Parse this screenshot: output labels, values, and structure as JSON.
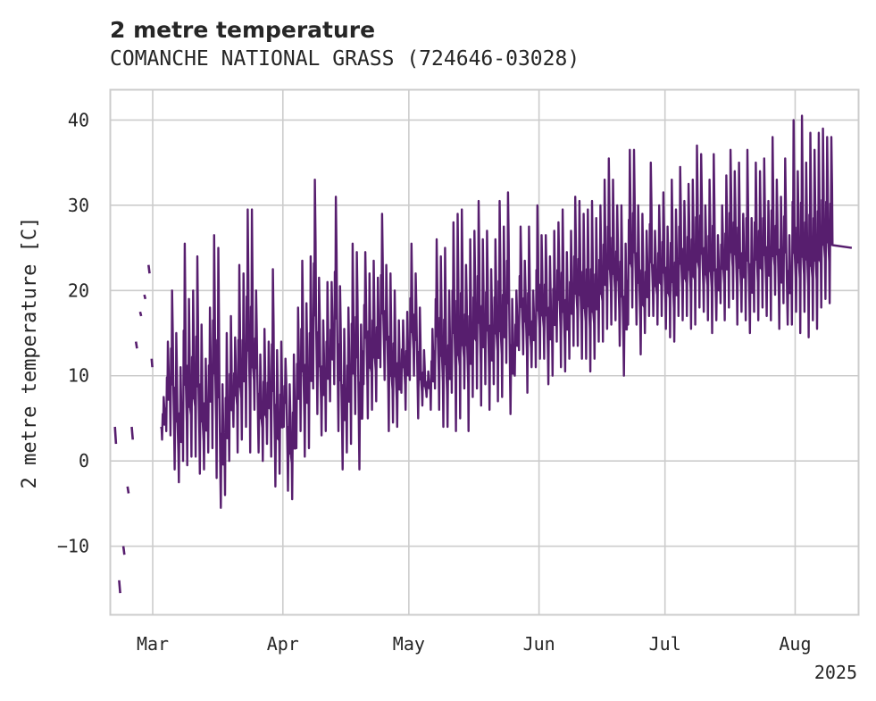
{
  "chart_data": {
    "type": "line",
    "title": "2 metre temperature",
    "subtitle": "COMANCHE NATIONAL GRASS (724646-03028)",
    "xlabel": "",
    "ylabel": "2 metre temperature [C]",
    "x_range": [
      "2025-02-19",
      "2025-08-16"
    ],
    "ylim": [
      -18,
      43.5
    ],
    "y_ticks": [
      40,
      30,
      20,
      10,
      0,
      -10
    ],
    "y_tick_labels": [
      "40",
      "30",
      "20",
      "10",
      "0",
      "−10"
    ],
    "x_ticks": [
      "2025-03-01",
      "2025-04-01",
      "2025-05-01",
      "2025-06-01",
      "2025-07-01",
      "2025-08-01"
    ],
    "x_tick_labels": [
      "Mar",
      "Apr",
      "May",
      "Jun",
      "Jul",
      "Aug"
    ],
    "x_secondary_label": "2025",
    "grid": true,
    "colors": {
      "line": "#571e6e",
      "grid": "#cccccc",
      "spine": "#cccccc",
      "text": "#262626"
    },
    "series": [
      {
        "name": "2 metre temperature",
        "segments": [
          [
            [
              "2025-02-20T00",
              4.0
            ],
            [
              "2025-02-20T06",
              2.0
            ]
          ],
          [
            [
              "2025-02-21T00",
              -14.0
            ],
            [
              "2025-02-21T06",
              -15.5
            ]
          ],
          [
            [
              "2025-02-22T00",
              -10.0
            ],
            [
              "2025-02-22T06",
              -11.0
            ]
          ],
          [
            [
              "2025-02-23T00",
              -3.0
            ],
            [
              "2025-02-23T06",
              -3.8
            ]
          ],
          [
            [
              "2025-02-24T00",
              4.0
            ],
            [
              "2025-02-24T06",
              2.5
            ]
          ],
          [
            [
              "2025-02-25T00",
              14.0
            ],
            [
              "2025-02-25T06",
              13.2
            ]
          ],
          [
            [
              "2025-02-26T00",
              17.5
            ],
            [
              "2025-02-26T06",
              17.0
            ]
          ],
          [
            [
              "2025-02-27T00",
              19.5
            ],
            [
              "2025-02-27T06",
              19.0
            ]
          ],
          [
            [
              "2025-02-28T00",
              23.0
            ],
            [
              "2025-02-28T06",
              22.0
            ]
          ],
          [
            [
              "2025-02-28T18",
              12.0
            ],
            [
              "2025-02-28T22",
              11.0
            ]
          ]
        ],
        "daily_ranges": [
          [
            3,
            2.5,
            7.5
          ],
          [
            4,
            3.5,
            14
          ],
          [
            5,
            3,
            20
          ],
          [
            6,
            -1,
            15
          ],
          [
            7,
            -2.5,
            11
          ],
          [
            8,
            0,
            25.5
          ],
          [
            9,
            -0.5,
            19
          ],
          [
            10,
            0.5,
            20
          ],
          [
            11,
            0.5,
            24
          ],
          [
            12,
            -1.5,
            16
          ],
          [
            13,
            -1,
            12
          ],
          [
            14,
            1,
            18
          ],
          [
            15,
            1.5,
            26.5
          ],
          [
            16,
            -2,
            25
          ],
          [
            17,
            -5.5,
            9
          ],
          [
            18,
            -4,
            15
          ],
          [
            19,
            0,
            17
          ],
          [
            20,
            4,
            14.5
          ],
          [
            21,
            1,
            23
          ],
          [
            22,
            2.5,
            22
          ],
          [
            23,
            4,
            29.5
          ],
          [
            24,
            1,
            29.5
          ],
          [
            25,
            6,
            20
          ],
          [
            26,
            1,
            12.5
          ],
          [
            27,
            0,
            15.5
          ],
          [
            28,
            2,
            14
          ],
          [
            29,
            0.5,
            22.5
          ],
          [
            30,
            -3,
            13
          ],
          [
            31,
            -1.5,
            14
          ],
          [
            32,
            4,
            12
          ],
          [
            33,
            -3.5,
            9
          ],
          [
            34,
            -4.5,
            12.5
          ],
          [
            35,
            1.5,
            18
          ],
          [
            36,
            3.5,
            23.5
          ],
          [
            37,
            0.5,
            18.5
          ],
          [
            38,
            1.5,
            24
          ],
          [
            39,
            8.5,
            33
          ],
          [
            40,
            5.5,
            21.5
          ],
          [
            41,
            3,
            16.5
          ],
          [
            42,
            3.5,
            21
          ],
          [
            43,
            7,
            21
          ],
          [
            44,
            9,
            31
          ],
          [
            45,
            3.5,
            20.5
          ],
          [
            46,
            -1,
            15.5
          ],
          [
            47,
            1,
            18
          ],
          [
            48,
            2,
            25.5
          ],
          [
            49,
            5.5,
            24.5
          ],
          [
            50,
            -1,
            16
          ],
          [
            51,
            9,
            24.5
          ],
          [
            52,
            5,
            22
          ],
          [
            53,
            6,
            23.5
          ],
          [
            54,
            7,
            21.5
          ],
          [
            55,
            11,
            29
          ],
          [
            56,
            9.5,
            23
          ],
          [
            57,
            3.5,
            22
          ],
          [
            58,
            4.5,
            20
          ],
          [
            59,
            4,
            16.5
          ],
          [
            60,
            8,
            16.5
          ],
          [
            61,
            6,
            17.5
          ],
          [
            62,
            9.5,
            25.5
          ],
          [
            63,
            10,
            22
          ],
          [
            64,
            5,
            18
          ],
          [
            65,
            6.5,
            13
          ],
          [
            66,
            7.5,
            10.5
          ],
          [
            67,
            6,
            15.5
          ],
          [
            68,
            8.5,
            26
          ],
          [
            69,
            6,
            24
          ],
          [
            70,
            4,
            25
          ],
          [
            71,
            4,
            20
          ],
          [
            72,
            8,
            28
          ],
          [
            73,
            3.5,
            29
          ],
          [
            74,
            5,
            29.5
          ],
          [
            75,
            8.5,
            23
          ],
          [
            76,
            3.5,
            26
          ],
          [
            77,
            7.5,
            27
          ],
          [
            78,
            8.5,
            30.5
          ],
          [
            79,
            6.5,
            26
          ],
          [
            80,
            9,
            27
          ],
          [
            81,
            6,
            22.5
          ],
          [
            82,
            9,
            26
          ],
          [
            83,
            7,
            30.5
          ],
          [
            84,
            7.5,
            27.5
          ],
          [
            85,
            11.5,
            31.5
          ],
          [
            86,
            5.5,
            19
          ],
          [
            87,
            10,
            20
          ],
          [
            88,
            13,
            27.5
          ],
          [
            89,
            12.5,
            23.5
          ],
          [
            90,
            8,
            27.5
          ],
          [
            91,
            11,
            20
          ],
          [
            92,
            11,
            30
          ],
          [
            93,
            12,
            26.5
          ],
          [
            94,
            12,
            26.5
          ],
          [
            95,
            9,
            24
          ],
          [
            96,
            10,
            27
          ],
          [
            97,
            14,
            28
          ],
          [
            98,
            11,
            29.5
          ],
          [
            99,
            10.5,
            24.5
          ],
          [
            100,
            12,
            27
          ],
          [
            101,
            13.5,
            31
          ],
          [
            102,
            13.5,
            30.5
          ],
          [
            103,
            12,
            29
          ],
          [
            104,
            12,
            29.5
          ],
          [
            105,
            10.5,
            30.5
          ],
          [
            106,
            12,
            28.5
          ],
          [
            107,
            14,
            30
          ],
          [
            108,
            14,
            33
          ],
          [
            109,
            15.5,
            35.5
          ],
          [
            110,
            16,
            33
          ],
          [
            111,
            16.5,
            30
          ],
          [
            112,
            13.5,
            30
          ],
          [
            113,
            10,
            25.5
          ],
          [
            114,
            16,
            36.5
          ],
          [
            115,
            18,
            36.5
          ],
          [
            116,
            16,
            30
          ],
          [
            117,
            12.5,
            29
          ],
          [
            118,
            15,
            27
          ],
          [
            119,
            17,
            35
          ],
          [
            120,
            17,
            27
          ],
          [
            121,
            16,
            30
          ],
          [
            122,
            17,
            31.5
          ],
          [
            123,
            15.5,
            27.5
          ],
          [
            124,
            14.5,
            33
          ],
          [
            125,
            14,
            29.5
          ],
          [
            126,
            17,
            34.5
          ],
          [
            127,
            16.5,
            30.5
          ],
          [
            128,
            17,
            32.5
          ],
          [
            129,
            15.5,
            33
          ],
          [
            130,
            16,
            37
          ],
          [
            131,
            18,
            36
          ],
          [
            132,
            17.5,
            30
          ],
          [
            133,
            16.5,
            33
          ],
          [
            134,
            15,
            36
          ],
          [
            135,
            16.5,
            26.5
          ],
          [
            136,
            18.5,
            30
          ],
          [
            137,
            16.5,
            33.5
          ],
          [
            138,
            18,
            36.5
          ],
          [
            139,
            19,
            34
          ],
          [
            140,
            16,
            35
          ],
          [
            141,
            17.5,
            29
          ],
          [
            142,
            16.5,
            36.5
          ],
          [
            143,
            15,
            28.5
          ],
          [
            144,
            17.5,
            35
          ],
          [
            145,
            16.5,
            34
          ],
          [
            146,
            18,
            35.5
          ],
          [
            147,
            17,
            30.5
          ],
          [
            148,
            16.5,
            38
          ],
          [
            149,
            19.5,
            33
          ],
          [
            150,
            15.5,
            31
          ],
          [
            151,
            18.5,
            35.5
          ],
          [
            152,
            16,
            26.5
          ],
          [
            153,
            16,
            40
          ],
          [
            154,
            17.5,
            34
          ],
          [
            155,
            15,
            40.5
          ],
          [
            156,
            17.5,
            35
          ],
          [
            157,
            14.5,
            38.5
          ],
          [
            158,
            16.5,
            36.5
          ],
          [
            159,
            15.5,
            38.5
          ],
          [
            160,
            18,
            39
          ],
          [
            161,
            19,
            38
          ],
          [
            162,
            18.5,
            38
          ]
        ],
        "line_end": [
          "2025-08-14T12",
          25.0
        ]
      }
    ]
  }
}
